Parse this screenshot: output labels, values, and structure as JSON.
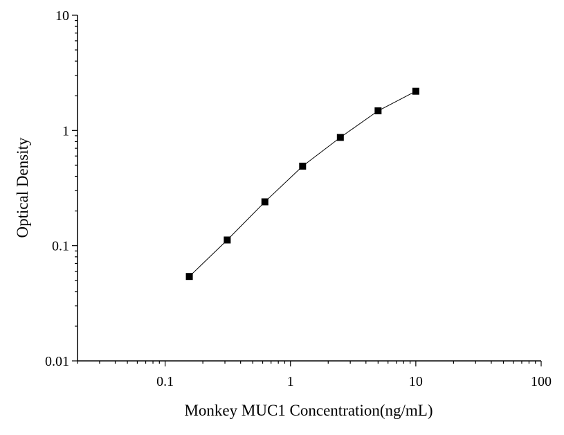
{
  "chart_data": {
    "type": "line",
    "title": "",
    "xlabel": "Monkey MUC1 Concentration(ng/mL)",
    "ylabel": "Optical Density",
    "xscale": "log",
    "yscale": "log",
    "xlim": [
      0.02,
      100
    ],
    "ylim": [
      0.01,
      10
    ],
    "x_ticks": [
      0.1,
      1,
      10,
      100
    ],
    "x_tick_labels": [
      "0.1",
      "1",
      "10",
      "100"
    ],
    "y_ticks": [
      0.01,
      0.1,
      1,
      10
    ],
    "y_tick_labels": [
      "0.01",
      "0.1",
      "1",
      "10"
    ],
    "grid": false,
    "legend": "none",
    "marker": "square",
    "color": "#000000",
    "series": [
      {
        "x": [
          0.156,
          0.313,
          0.625,
          1.25,
          2.5,
          5,
          10
        ],
        "y": [
          0.054,
          0.112,
          0.24,
          0.49,
          0.87,
          1.48,
          2.19
        ]
      }
    ]
  }
}
